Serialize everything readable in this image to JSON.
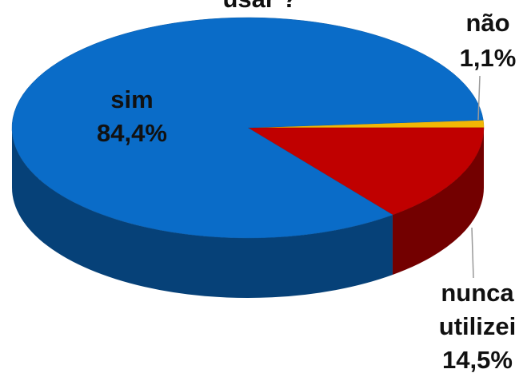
{
  "chart_data": {
    "type": "pie",
    "title": "usar ?",
    "categories": [
      "não",
      "nunca utilizei",
      "sim"
    ],
    "values": [
      1.1,
      14.5,
      84.4
    ],
    "value_labels": [
      "1,1%",
      "14,5%",
      "84,4%"
    ],
    "colors": [
      "#f2b705",
      "#c00000",
      "#0a6cc8"
    ]
  }
}
